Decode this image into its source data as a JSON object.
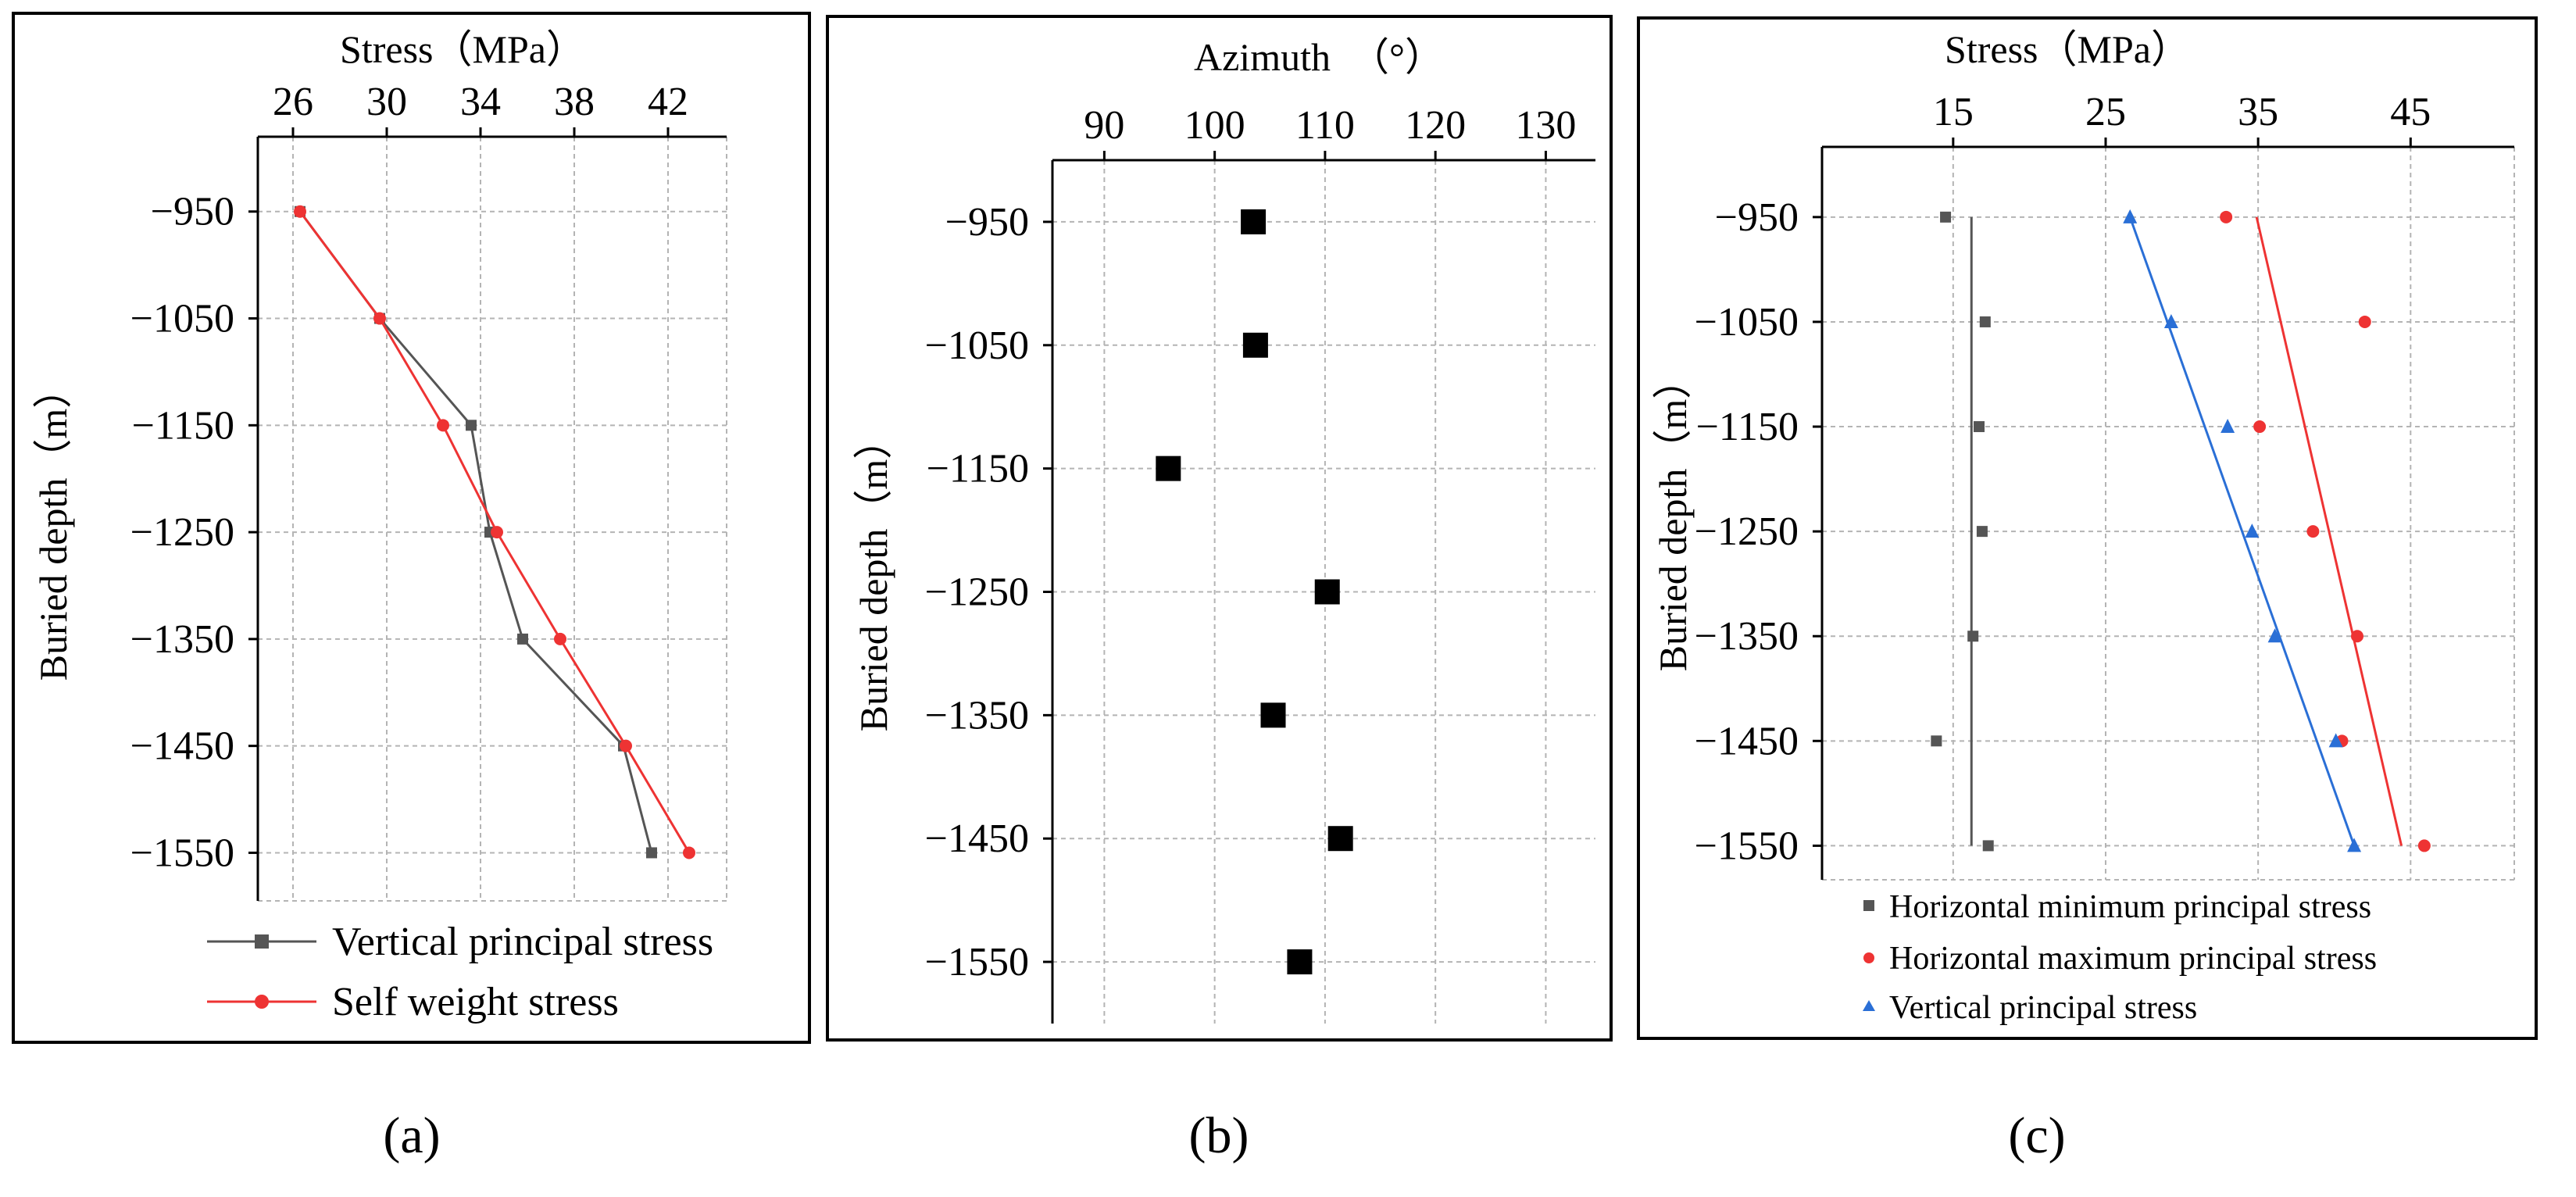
{
  "chart_data": [
    {
      "id": "a",
      "type": "line",
      "panel_label": "(a)",
      "xlabel": "Stress（MPa）",
      "ylabel": "Buried depth（m）",
      "x_ticks": [
        "26",
        "30",
        "34",
        "38",
        "42"
      ],
      "y_ticks": [
        "−950",
        "−1050",
        "−1150",
        "−1250",
        "−1350",
        "−1450",
        "−1550"
      ],
      "xlim": [
        24.5,
        44.5
      ],
      "ylim": [
        -1595,
        -880
      ],
      "x_axis_position": "top",
      "legend_position": "bottom",
      "series": [
        {
          "name": "Vertical principal stress",
          "color": "#555555",
          "marker": "square",
          "x": [
            26.3,
            29.7,
            33.6,
            34.4,
            35.8,
            40.1,
            41.3
          ],
          "y": [
            -950,
            -1050,
            -1150,
            -1250,
            -1350,
            -1450,
            -1550
          ]
        },
        {
          "name": "Self weight stress",
          "color": "#ee3333",
          "marker": "circle",
          "x": [
            26.3,
            29.7,
            32.4,
            34.7,
            37.4,
            40.2,
            42.9
          ],
          "y": [
            -950,
            -1050,
            -1150,
            -1250,
            -1350,
            -1450,
            -1550
          ]
        }
      ]
    },
    {
      "id": "b",
      "type": "scatter",
      "panel_label": "(b)",
      "xlabel": "Azimuth　（°）",
      "ylabel": "Buried depth（m）",
      "x_ticks": [
        "90",
        "100",
        "110",
        "120",
        "130"
      ],
      "y_ticks": [
        "−950",
        "−1050",
        "−1150",
        "−1250",
        "−1350",
        "−1450",
        "−1550"
      ],
      "xlim": [
        85.3,
        134.5
      ],
      "ylim": [
        -1600,
        -900
      ],
      "x_axis_position": "top",
      "series": [
        {
          "name": "Azimuth",
          "color": "#000000",
          "marker": "square",
          "x": [
            103.5,
            103.7,
            95.8,
            110.2,
            105.3,
            111.4,
            107.7
          ],
          "y": [
            -950,
            -1050,
            -1150,
            -1250,
            -1350,
            -1450,
            -1550
          ]
        }
      ]
    },
    {
      "id": "c",
      "type": "scatter",
      "panel_label": "(c)",
      "xlabel": "Stress（MPa）",
      "ylabel": "Buried depth（m）",
      "x_ticks": [
        "15",
        "25",
        "35",
        "45"
      ],
      "y_ticks": [
        "−950",
        "−1050",
        "−1150",
        "−1250",
        "−1350",
        "−1450",
        "−1550"
      ],
      "xlim": [
        6.4,
        51.8
      ],
      "ylim": [
        -1582.5,
        -883
      ],
      "x_axis_position": "top",
      "legend_position": "bottom",
      "series": [
        {
          "name": "Horizontal minimum principal stress",
          "color": "#555555",
          "marker": "square",
          "x": [
            14.5,
            17.1,
            16.7,
            16.9,
            16.3,
            13.9,
            17.3
          ],
          "y": [
            -950,
            -1050,
            -1150,
            -1250,
            -1350,
            -1450,
            -1550
          ],
          "trend": {
            "x": [
              16.2,
              16.2
            ],
            "y": [
              -950,
              -1550
            ]
          }
        },
        {
          "name": "Horizontal maximum principal stress",
          "color": "#ee3333",
          "marker": "circle",
          "x": [
            32.9,
            42.0,
            35.1,
            38.6,
            41.5,
            40.5,
            45.9
          ],
          "y": [
            -950,
            -1050,
            -1150,
            -1250,
            -1350,
            -1450,
            -1550
          ],
          "trend": {
            "x": [
              34.9,
              44.4
            ],
            "y": [
              -950,
              -1550
            ]
          }
        },
        {
          "name": "Vertical principal stress",
          "color": "#2a6fd6",
          "marker": "triangle",
          "x": [
            26.6,
            29.3,
            33.0,
            34.6,
            36.1,
            40.1,
            41.3
          ],
          "y": [
            -950,
            -1050,
            -1150,
            -1250,
            -1350,
            -1450,
            -1550
          ],
          "trend": {
            "x": [
              26.6,
              41.3
            ],
            "y": [
              -950,
              -1550
            ]
          }
        }
      ]
    }
  ]
}
